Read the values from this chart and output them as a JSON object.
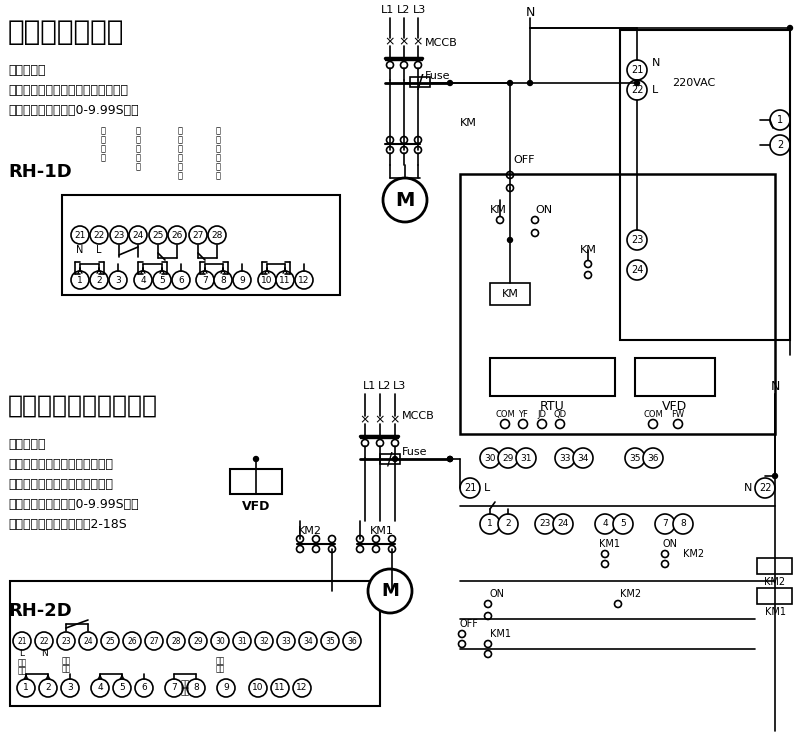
{
  "bg_color": "#ffffff",
  "title1": "工频晃电再启动",
  "title2": "工频、变频晃电再启动",
  "scope_label": "适用范围：",
  "desc1_line1": "工频系统配合交流接触器晃电再启动",
  "desc1_line2": "晃电自启允许时间：0-9.99S可调",
  "desc2_line1": "工频系统配合接触器晃电在启动",
  "desc2_line2": "变频系统配合变频器晃电再启动",
  "desc2_line3": "晃电自启允许时间：0-9.99S可调",
  "desc2_line4": "变频器再启动运行时间：2-18S",
  "model1": "RH-1D",
  "model2": "RH-2D"
}
